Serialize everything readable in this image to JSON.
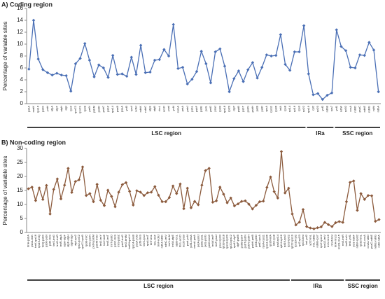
{
  "chart_data": [
    {
      "type": "line",
      "title": "A) Coding region",
      "ylabel": "Percentage of variable sites",
      "color": "#4a6fb5",
      "ylim": [
        0,
        16
      ],
      "yticks": [
        0,
        2,
        4,
        6,
        8,
        10,
        12,
        14,
        16
      ],
      "grid": false,
      "categories": [
        "psbA",
        "matK",
        "rps16",
        "psbK",
        "psbI",
        "atpA",
        "atpF",
        "atpH",
        "atpI",
        "rps2",
        "rpoC2",
        "rpoC1",
        "rpoB",
        "petN",
        "psbM",
        "psbD",
        "psbC",
        "psbZ",
        "rps14",
        "psaB",
        "psaA",
        "ycf3",
        "rps4",
        "ndhJ",
        "ndhK",
        "ndhC",
        "atpE",
        "atpB",
        "rbcL",
        "accD",
        "psaI",
        "ycf4",
        "cemA",
        "petA",
        "psbJ",
        "psbL",
        "psbF",
        "psbE",
        "petL",
        "petG",
        "psaJ",
        "rpl33",
        "rps18",
        "rpl20",
        "clpP",
        "psbB",
        "psbT",
        "psbN",
        "psbH",
        "petB",
        "petD",
        "rpoA",
        "rps11",
        "rpl36",
        "infA",
        "rps8",
        "rpl14",
        "rpl16",
        "rps3",
        "rpl22",
        "rps19",
        "rpl2",
        "rpl23",
        "ycf2",
        "ndhB",
        "rps7",
        "ycf1",
        "ndhF",
        "rpl32",
        "ccsA",
        "ndhD",
        "psaC",
        "ndhE",
        "ndhG",
        "ndhI",
        "ndhA"
      ],
      "values": [
        5.8,
        14.0,
        7.5,
        5.7,
        5.2,
        4.8,
        5.1,
        4.8,
        4.7,
        2.1,
        6.7,
        7.6,
        10.1,
        7.3,
        4.5,
        6.5,
        6.0,
        4.4,
        8.1,
        4.9,
        5.0,
        4.6,
        7.8,
        4.9,
        9.8,
        5.2,
        5.3,
        7.3,
        7.4,
        9.1,
        8.0,
        13.3,
        5.9,
        6.1,
        3.3,
        4.1,
        5.4,
        8.8,
        6.7,
        3.5,
        8.7,
        9.2,
        6.3,
        2.0,
        4.2,
        5.5,
        3.7,
        5.7,
        6.9,
        4.3,
        6.1,
        8.2,
        8.0,
        8.1,
        11.6,
        6.6,
        5.6,
        8.7,
        8.7,
        13.1,
        5.0,
        1.5,
        1.7,
        0.7,
        1.4,
        1.8,
        12.4,
        9.6,
        8.9,
        6.1,
        6.0,
        8.2,
        8.1,
        10.3,
        9.0,
        2.0
      ],
      "regions": [
        {
          "label": "LSC region",
          "first": 0,
          "last": 59
        },
        {
          "label": "IRa",
          "first": 60,
          "last": 65
        },
        {
          "label": "SSC region",
          "first": 66,
          "last": 75
        }
      ]
    },
    {
      "type": "line",
      "title": "B) Non-coding region",
      "ylabel": "Percentage of variable sites",
      "color": "#8b5a3c",
      "ylim": [
        0,
        30
      ],
      "yticks": [
        0,
        5,
        10,
        15,
        20,
        25,
        30
      ],
      "grid": false,
      "categories": [
        "trnH-psbA",
        "psbA-trnK",
        "trnK-rps16",
        "rps16-trnQ",
        "trnQ-psbK",
        "psbK-psbI",
        "psbI-trnS",
        "trnS-trnG",
        "trnG-trnR",
        "trnR-atpA",
        "atpA-atpF",
        "atpF-atpH",
        "atpH-atpI",
        "atpI-rps2",
        "rps2-rpoC2",
        "rpoC1-rpoB",
        "rpoB-trnC",
        "trnC-petN",
        "petN-psbM",
        "psbM-trnD",
        "trnD-trnY",
        "trnY-trnE",
        "trnE-trnT",
        "trnT-psbD",
        "psbC-trnS",
        "trnS-psbZ",
        "psbZ-trnG",
        "trnG-trnfM",
        "trnfM-rps14",
        "rps14-psaB",
        "psaA-ycf3",
        "ycf3-trnS",
        "trnS-rps4",
        "rps4-trnT",
        "trnT-trnL",
        "trnL-trnF",
        "trnF-ndhJ",
        "ndhJ-ndhK",
        "ndhC-trnV",
        "trnV-trnM",
        "trnM-atpE",
        "atpB-rbcL",
        "rbcL-accD",
        "accD-psaI",
        "psaI-ycf4",
        "ycf4-cemA",
        "cemA-petA",
        "petA-psbJ",
        "psbE-petL",
        "petL-petG",
        "petG-trnW",
        "trnW-trnP",
        "trnP-psaJ",
        "psaJ-rpl33",
        "rpl33-rps18",
        "rps18-rpl20",
        "rpl20-rps12",
        "rps12-clpP",
        "clpP-psbB",
        "psbB-psbT",
        "psbT-psbN",
        "psbN-psbH",
        "psbH-petB",
        "petB-petD",
        "petD-rpoA",
        "rpoA-rps11",
        "rps11-rpl36",
        "rpl36-infA",
        "infA-rps8",
        "rps8-rpl14",
        "rpl14-rpl16",
        "rpl16-rps3",
        "rps3-rpl22",
        "rpl22-rps19",
        "rps19-rpl2",
        "rpl2-rpl23",
        "rpl23-trnI",
        "trnI-ycf2",
        "ycf2-trnL",
        "trnL-ndhB",
        "ndhB-rps7",
        "rps7-rps12",
        "rps12-trnV",
        "trnV-rrn16",
        "rrn16-trnI",
        "trnA-rrn23",
        "rrn23-rrn4.5",
        "rrn5-trnR",
        "trnR-trnN",
        "trnN-ycf1",
        "ycf1-ndhF",
        "ndhF-rpl32",
        "rpl32-trnL",
        "trnL-ccsA",
        "ccsA-ndhD",
        "psaC-ndhE",
        "ndhE-ndhG",
        "ndhI-ndhA"
      ],
      "values": [
        15.6,
        16.2,
        11.4,
        15.9,
        11.8,
        16.8,
        6.6,
        15.4,
        19.1,
        12.0,
        16.9,
        22.9,
        14.3,
        18.2,
        18.8,
        23.4,
        13.2,
        13.9,
        11.0,
        17.2,
        11.5,
        9.6,
        15.1,
        12.9,
        9.2,
        14.4,
        17.1,
        17.8,
        14.7,
        9.8,
        14.9,
        14.4,
        13.2,
        14.2,
        14.4,
        16.4,
        13.3,
        11.0,
        11.0,
        12.5,
        16.6,
        13.9,
        17.3,
        8.5,
        15.8,
        8.8,
        11.1,
        9.9,
        16.9,
        22.1,
        22.9,
        10.8,
        11.3,
        16.2,
        13.7,
        10.6,
        12.3,
        9.5,
        10.2,
        11.1,
        11.3,
        10.1,
        8.4,
        9.7,
        11.0,
        11.2,
        16.1,
        19.8,
        14.6,
        12.3,
        28.9,
        14.1,
        15.8,
        6.6,
        2.7,
        3.7,
        8.2,
        2.1,
        1.6,
        1.3,
        1.7,
        2.0,
        3.6,
        2.8,
        2.1,
        3.5,
        3.9,
        3.6,
        11.0,
        17.9,
        18.4,
        7.9,
        13.9,
        11.8,
        13.2,
        13.1,
        4.0,
        4.6
      ],
      "regions": [
        {
          "label": "LSC region",
          "first": 0,
          "last": 72
        },
        {
          "label": "IRa",
          "first": 73,
          "last": 87
        },
        {
          "label": "SSC region",
          "first": 88,
          "last": 97
        }
      ]
    }
  ]
}
